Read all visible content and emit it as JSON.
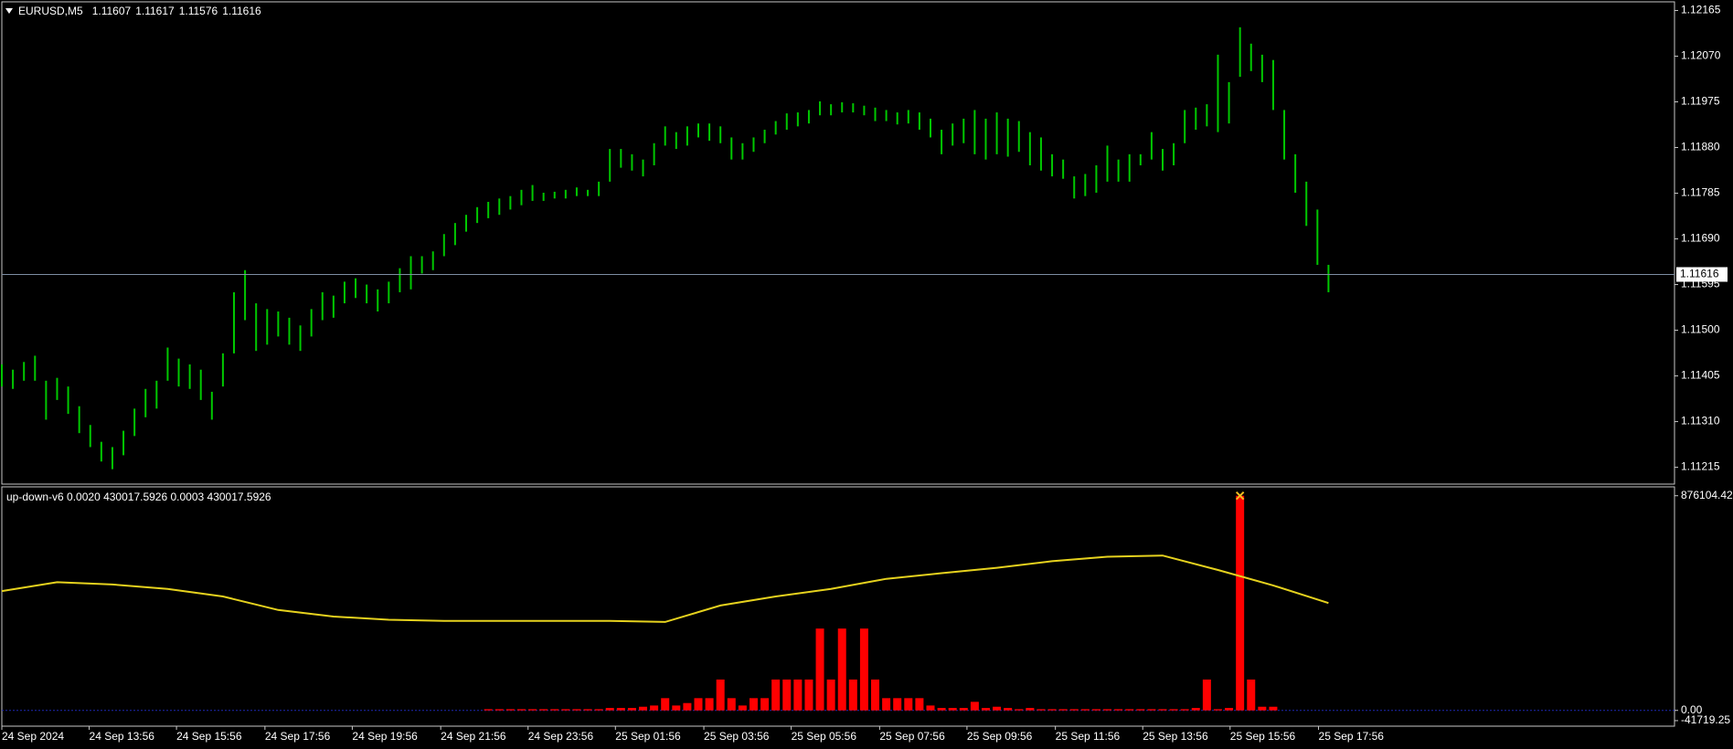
{
  "chart_data": [
    {
      "type": "ohlc",
      "title": "EURUSD,M5",
      "header_values": [
        1.11607,
        1.11617,
        1.11576,
        1.11616
      ],
      "color": "#00c800",
      "last_price": 1.11616,
      "last_price_color": "#7d8da3",
      "xlim": [
        0,
        151.3
      ],
      "ylim": [
        1.1118,
        1.12183
      ],
      "yticks": [
        1.12165,
        {
          "value": 1.1207,
          "label": "1.12070"
        },
        1.11975,
        {
          "value": 1.1188,
          "label": "1.11880"
        },
        1.11785,
        {
          "value": 1.1169,
          "label": "1.11690"
        },
        1.11595,
        {
          "value": 1.115,
          "label": "1.11500"
        },
        1.11405,
        {
          "value": 1.1131,
          "label": "1.11310"
        },
        1.11215
      ],
      "high": [
        1.11429,
        1.11418,
        1.11434,
        1.11447,
        1.11395,
        1.11401,
        1.11383,
        1.11342,
        1.11303,
        1.11268,
        1.11257,
        1.11291,
        1.11337,
        1.11378,
        1.11395,
        1.11464,
        1.11441,
        1.11429,
        1.11418,
        1.11372,
        1.11452,
        1.11579,
        1.11625,
        1.11556,
        1.11544,
        1.11539,
        1.11526,
        1.1151,
        1.11544,
        1.11579,
        1.11572,
        1.11601,
        1.11608,
        1.11595,
        1.11585,
        1.11601,
        1.11629,
        1.11654,
        1.11654,
        1.11664,
        1.117,
        1.11723,
        1.1174,
        1.11756,
        1.11767,
        1.11774,
        1.11779,
        1.11792,
        1.11802,
        1.11786,
        1.11788,
        1.11792,
        1.11797,
        1.11792,
        1.11809,
        1.11877,
        1.11877,
        1.11866,
        1.11855,
        1.11889,
        1.11924,
        1.11912,
        1.11924,
        1.1193,
        1.1193,
        1.11924,
        1.11901,
        1.11889,
        1.11901,
        1.11917,
        1.11935,
        1.11951,
        1.11953,
        1.11958,
        1.11976,
        1.1197,
        1.11974,
        1.11972,
        1.11967,
        1.11963,
        1.11958,
        1.11953,
        1.11958,
        1.11953,
        1.1194,
        1.11917,
        1.1193,
        1.1194,
        1.11958,
        1.1194,
        1.11953,
        1.1194,
        1.11935,
        1.11912,
        1.11901,
        1.11866,
        1.11855,
        1.1182,
        1.11825,
        1.11843,
        1.11884,
        1.11855,
        1.11866,
        1.11866,
        1.11912,
        1.11877,
        1.11889,
        1.11958,
        1.11963,
        1.1197,
        1.12073,
        1.12016,
        1.1213,
        1.12096,
        1.12073,
        1.12062,
        1.11958,
        1.11866,
        1.11809,
        1.11751,
        1.11636
      ],
      "low": [
        1.11383,
        1.11378,
        1.11395,
        1.11395,
        1.11314,
        1.11355,
        1.11326,
        1.11286,
        1.11257,
        1.11227,
        1.11211,
        1.1124,
        1.1128,
        1.11319,
        1.11337,
        1.11395,
        1.11383,
        1.11378,
        1.11355,
        1.11314,
        1.11383,
        1.11452,
        1.11521,
        1.11457,
        1.1147,
        1.11487,
        1.1147,
        1.11457,
        1.11487,
        1.11521,
        1.11526,
        1.11556,
        1.11567,
        1.11556,
        1.11539,
        1.11556,
        1.11579,
        1.11585,
        1.11618,
        1.11625,
        1.11654,
        1.11677,
        1.11705,
        1.11723,
        1.11733,
        1.1174,
        1.11751,
        1.1176,
        1.11769,
        1.11769,
        1.11774,
        1.11774,
        1.11779,
        1.11779,
        1.11779,
        1.11809,
        1.11838,
        1.11832,
        1.1182,
        1.11843,
        1.11884,
        1.11877,
        1.11884,
        1.11901,
        1.11894,
        1.11889,
        1.11855,
        1.11855,
        1.11871,
        1.11889,
        1.11907,
        1.11917,
        1.11924,
        1.1193,
        1.11947,
        1.11947,
        1.11953,
        1.11953,
        1.11947,
        1.11935,
        1.11935,
        1.11928,
        1.1193,
        1.11917,
        1.11901,
        1.11866,
        1.11884,
        1.11889,
        1.11866,
        1.11855,
        1.11866,
        1.11861,
        1.11871,
        1.11843,
        1.11832,
        1.1182,
        1.11815,
        1.11774,
        1.11779,
        1.11786,
        1.11809,
        1.11809,
        1.11809,
        1.11843,
        1.11855,
        1.11832,
        1.11843,
        1.11889,
        1.11917,
        1.11924,
        1.11912,
        1.1193,
        1.12027,
        1.12039,
        1.12016,
        1.11958,
        1.11855,
        1.11786,
        1.11717,
        1.11636,
        1.11579
      ]
    },
    {
      "type": "indicator",
      "title": "up-down-v6 0.0020 430017.5926 0.0003 430017.5926",
      "xlim": [
        0,
        151.3
      ],
      "ylim": [
        -64300,
        912300
      ],
      "yticks": [
        876104.42,
        {
          "value": 0,
          "label": "0.00"
        },
        -41719.25
      ],
      "xticks": [
        {
          "value": 0,
          "label": "24 Sep 2024"
        },
        {
          "value": 7.9,
          "label": "24 Sep 13:56"
        },
        {
          "value": 15.8,
          "label": "24 Sep 15:56"
        },
        {
          "value": 23.8,
          "label": "24 Sep 17:56"
        },
        {
          "value": 31.7,
          "label": "24 Sep 19:56"
        },
        {
          "value": 39.7,
          "label": "24 Sep 21:56"
        },
        {
          "value": 47.6,
          "label": "24 Sep 23:56"
        },
        {
          "value": 55.5,
          "label": "25 Sep 01:56"
        },
        {
          "value": 63.5,
          "label": "25 Sep 03:56"
        },
        {
          "value": 71.4,
          "label": "25 Sep 05:56"
        },
        {
          "value": 79.4,
          "label": "25 Sep 07:56"
        },
        {
          "value": 87.3,
          "label": "25 Sep 09:56"
        },
        {
          "value": 95.3,
          "label": "25 Sep 11:56"
        },
        {
          "value": 103.2,
          "label": "25 Sep 13:56"
        },
        {
          "value": 111.1,
          "label": "25 Sep 15:56"
        },
        {
          "value": 119.1,
          "label": "25 Sep 17:56"
        }
      ],
      "line": {
        "color": "#e6d21e",
        "x": [
          0,
          5,
          10,
          15,
          20,
          25,
          30,
          35,
          40,
          45,
          50,
          55,
          60,
          65,
          70,
          75,
          80,
          85,
          90,
          95,
          100,
          105,
          110,
          115,
          120
        ],
        "values": [
          487000,
          523000,
          514000,
          496000,
          465000,
          410000,
          383000,
          370000,
          365000,
          365000,
          365000,
          365000,
          361000,
          428000,
          465000,
          496000,
          537000,
          560000,
          582000,
          609000,
          627000,
          632000,
          573000,
          510000,
          438000
        ]
      },
      "histogram": {
        "color": "#ff0000",
        "marker_color": "#f0c020",
        "values": [
          0,
          0,
          0,
          0,
          0,
          0,
          0,
          0,
          0,
          0,
          0,
          0,
          0,
          0,
          0,
          0,
          0,
          0,
          0,
          0,
          0,
          0,
          0,
          0,
          0,
          0,
          0,
          0,
          0,
          0,
          0,
          0,
          0,
          0,
          0,
          0,
          0,
          0,
          0,
          0,
          0,
          0,
          0,
          0,
          5000,
          5000,
          5000,
          5000,
          5000,
          5000,
          5000,
          5000,
          5000,
          5000,
          5000,
          10000,
          10000,
          10000,
          15000,
          20000,
          50000,
          20000,
          30000,
          50000,
          50000,
          126000,
          50000,
          20000,
          50000,
          50000,
          126000,
          126000,
          126000,
          126000,
          334000,
          126000,
          334000,
          126000,
          334000,
          126000,
          50000,
          50000,
          50000,
          50000,
          20000,
          10000,
          10000,
          10000,
          35000,
          10000,
          15000,
          10000,
          5000,
          10000,
          5000,
          5000,
          5000,
          5000,
          5000,
          5000,
          5000,
          5000,
          5000,
          5000,
          5000,
          5000,
          5000,
          5000,
          10000,
          126000,
          5000,
          10000,
          876104.42,
          126000,
          15000,
          15000,
          0,
          0,
          0,
          0,
          0
        ]
      },
      "zero_line_color": "#1e28b4"
    }
  ]
}
